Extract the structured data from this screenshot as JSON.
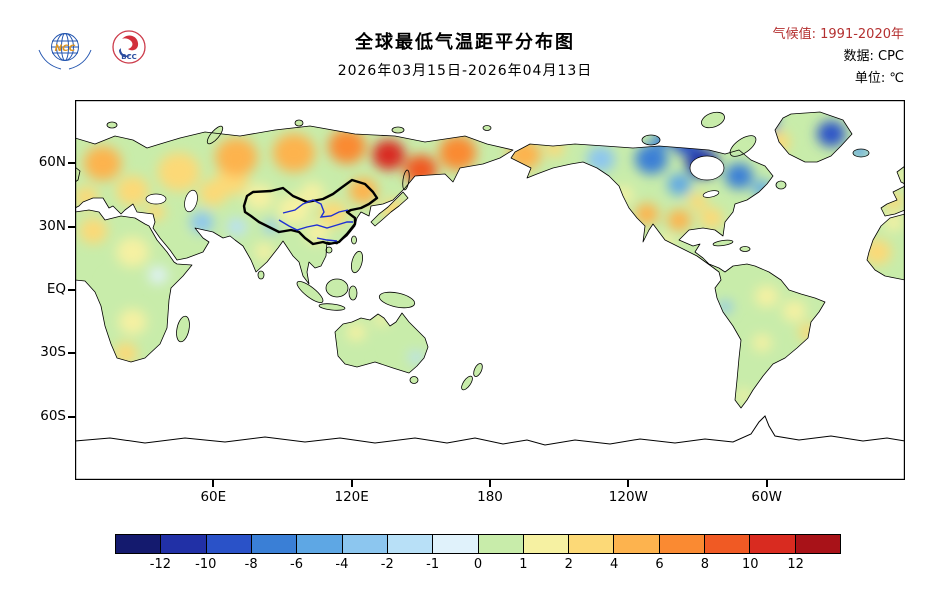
{
  "header": {
    "title": "全球最低气温距平分布图",
    "subtitle": "2026年03月15日-2026年04月13日",
    "meta_lines": [
      {
        "label": "气候值:",
        "value": "1991-2020年"
      },
      {
        "label": "数据:",
        "value": "CPC"
      },
      {
        "label": "单位:",
        "value": "℃"
      }
    ],
    "logo1_text": "NCC",
    "logo2_text": "BCC"
  },
  "map": {
    "lat_ticks": [
      {
        "label": "60N",
        "lat": 60
      },
      {
        "label": "30N",
        "lat": 30
      },
      {
        "label": "EQ",
        "lat": 0
      },
      {
        "label": "30S",
        "lat": -30
      },
      {
        "label": "60S",
        "lat": -60
      }
    ],
    "lon_ticks": [
      {
        "label": "60E",
        "lon": 60
      },
      {
        "label": "120E",
        "lon": 120
      },
      {
        "label": "180",
        "lon": 180
      },
      {
        "label": "120W",
        "lon": 240
      },
      {
        "label": "60W",
        "lon": 300
      }
    ]
  },
  "chart_data": {
    "type": "heatmap",
    "title": "全球最低气温距平分布图",
    "period": "2026年03月15日-2026年04月13日",
    "climate_base": "1991-2020年",
    "source": "CPC",
    "unit": "℃",
    "lon_range": [
      0,
      360
    ],
    "lat_range": [
      -90,
      90
    ],
    "colorbar": {
      "levels": [
        -12,
        -10,
        -8,
        -6,
        -4,
        -2,
        -1,
        0,
        1,
        2,
        4,
        6,
        8,
        10,
        12
      ],
      "labels": [
        "-12",
        "-10",
        "-8",
        "-6",
        "-4",
        "-2",
        "-1",
        "0",
        "1",
        "2",
        "4",
        "6",
        "8",
        "10",
        "12"
      ],
      "colors": [
        "#141a6e",
        "#2130a6",
        "#2a52c8",
        "#3a7fd6",
        "#5ea7e4",
        "#8cc6ef",
        "#b8e0f7",
        "#e0f2fb",
        "#c8ecaa",
        "#f6f1a2",
        "#fcd977",
        "#fdb34e",
        "#fa8a32",
        "#f05a24",
        "#d92b20",
        "#a81218"
      ]
    },
    "point_format": "[lon_east_deg, lat_deg, anomaly_c, radius_deg]",
    "anomaly_points": [
      [
        12,
        60,
        5,
        8
      ],
      [
        25,
        47,
        4,
        7
      ],
      [
        5,
        44,
        3,
        5
      ],
      [
        45,
        56,
        4,
        9
      ],
      [
        68,
        52,
        4,
        7
      ],
      [
        70,
        63,
        5,
        9
      ],
      [
        95,
        65,
        6,
        9
      ],
      [
        118,
        68,
        7,
        8
      ],
      [
        136,
        64,
        11,
        7
      ],
      [
        150,
        57,
        9,
        7
      ],
      [
        166,
        65,
        7,
        8
      ],
      [
        60,
        46,
        3,
        6
      ],
      [
        80,
        44,
        1.5,
        6
      ],
      [
        95,
        38,
        1.5,
        7
      ],
      [
        103,
        46,
        2,
        5
      ],
      [
        112,
        36,
        3,
        6
      ],
      [
        125,
        47,
        5,
        6
      ],
      [
        138,
        38,
        4,
        5
      ],
      [
        105,
        27,
        2,
        5
      ],
      [
        78,
        27,
        0.5,
        5
      ],
      [
        85,
        30,
        -2,
        3
      ],
      [
        70,
        30,
        -1.5,
        4
      ],
      [
        55,
        32,
        -2,
        5
      ],
      [
        45,
        22,
        0.5,
        6
      ],
      [
        35,
        37,
        3,
        4
      ],
      [
        100,
        15,
        1,
        5
      ],
      [
        115,
        2,
        0.5,
        6
      ],
      [
        82,
        18,
        1.5,
        4
      ],
      [
        130,
        12,
        1,
        4
      ],
      [
        140,
        -5,
        1,
        4
      ],
      [
        8,
        28,
        3,
        6
      ],
      [
        25,
        18,
        2,
        7
      ],
      [
        36,
        7,
        -0.5,
        4
      ],
      [
        18,
        2,
        1,
        5
      ],
      [
        25,
        -15,
        2,
        6
      ],
      [
        22,
        -30,
        3,
        5
      ],
      [
        348,
        18,
        3,
        6
      ],
      [
        355,
        32,
        2,
        4
      ],
      [
        46,
        -19,
        1,
        3
      ],
      [
        355,
        42,
        3,
        4
      ],
      [
        357,
        54,
        2,
        3
      ],
      [
        305,
        70,
        4,
        5
      ],
      [
        328,
        74,
        -9,
        6
      ],
      [
        340,
        66,
        -5,
        4
      ],
      [
        344,
        64,
        -2,
        2
      ],
      [
        195,
        64,
        5,
        7
      ],
      [
        208,
        67,
        3,
        4
      ],
      [
        228,
        62,
        -3,
        6
      ],
      [
        250,
        62,
        -7,
        7
      ],
      [
        272,
        60,
        -11,
        7
      ],
      [
        288,
        54,
        -7,
        6
      ],
      [
        298,
        48,
        -4,
        4
      ],
      [
        262,
        50,
        -4,
        5
      ],
      [
        238,
        45,
        2,
        4
      ],
      [
        248,
        36,
        5,
        5
      ],
      [
        262,
        33,
        6,
        5
      ],
      [
        276,
        34,
        4,
        5
      ],
      [
        270,
        42,
        4,
        4
      ],
      [
        256,
        22,
        2,
        4
      ],
      [
        270,
        14,
        1,
        3
      ],
      [
        265,
        70,
        -8,
        6
      ],
      [
        300,
        79,
        -6,
        5
      ],
      [
        255,
        72,
        -6,
        4
      ],
      [
        288,
        6,
        1,
        4
      ],
      [
        300,
        -3,
        2,
        5
      ],
      [
        282,
        -8,
        -3,
        3
      ],
      [
        312,
        -10,
        2,
        5
      ],
      [
        318,
        -20,
        3,
        4
      ],
      [
        298,
        -25,
        1.5,
        4
      ],
      [
        292,
        -38,
        0.5,
        4
      ],
      [
        290,
        -50,
        1.5,
        3
      ],
      [
        122,
        -20,
        1.5,
        4
      ],
      [
        133,
        -14,
        2,
        3
      ],
      [
        140,
        -26,
        0.5,
        4
      ],
      [
        148,
        -32,
        -1.5,
        3
      ],
      [
        117,
        -30,
        1,
        3
      ],
      [
        172,
        -42,
        1,
        2
      ]
    ]
  }
}
